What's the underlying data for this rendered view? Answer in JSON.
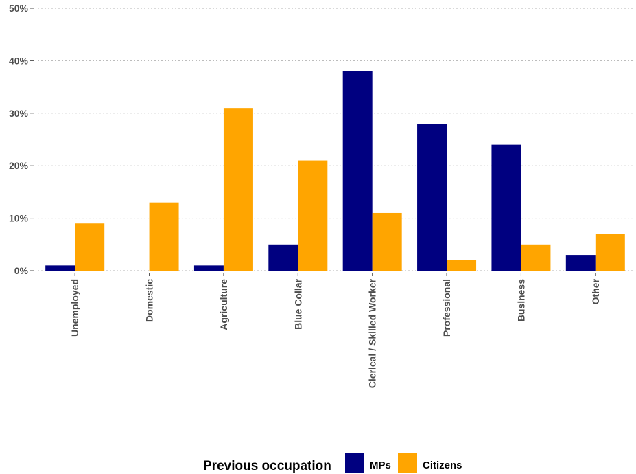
{
  "chart_data": {
    "type": "bar",
    "categories": [
      "Unemployed",
      "Domestic",
      "Agriculture",
      "Blue Collar",
      "Clerical / Skilled Worker",
      "Professional",
      "Business",
      "Other"
    ],
    "series": [
      {
        "name": "MPs",
        "color": "#000080",
        "values": [
          1,
          0,
          1,
          5,
          38,
          28,
          24,
          3
        ]
      },
      {
        "name": "Citizens",
        "color": "#FFA500",
        "values": [
          9,
          13,
          31,
          21,
          11,
          2,
          5,
          7
        ]
      }
    ],
    "yticks": [
      "0%",
      "10%",
      "20%",
      "30%",
      "40%",
      "50%"
    ],
    "ylim": [
      0,
      50
    ],
    "grid": "horizontal-dotted",
    "legend": {
      "title": "Previous occupation",
      "position": "bottom"
    }
  }
}
